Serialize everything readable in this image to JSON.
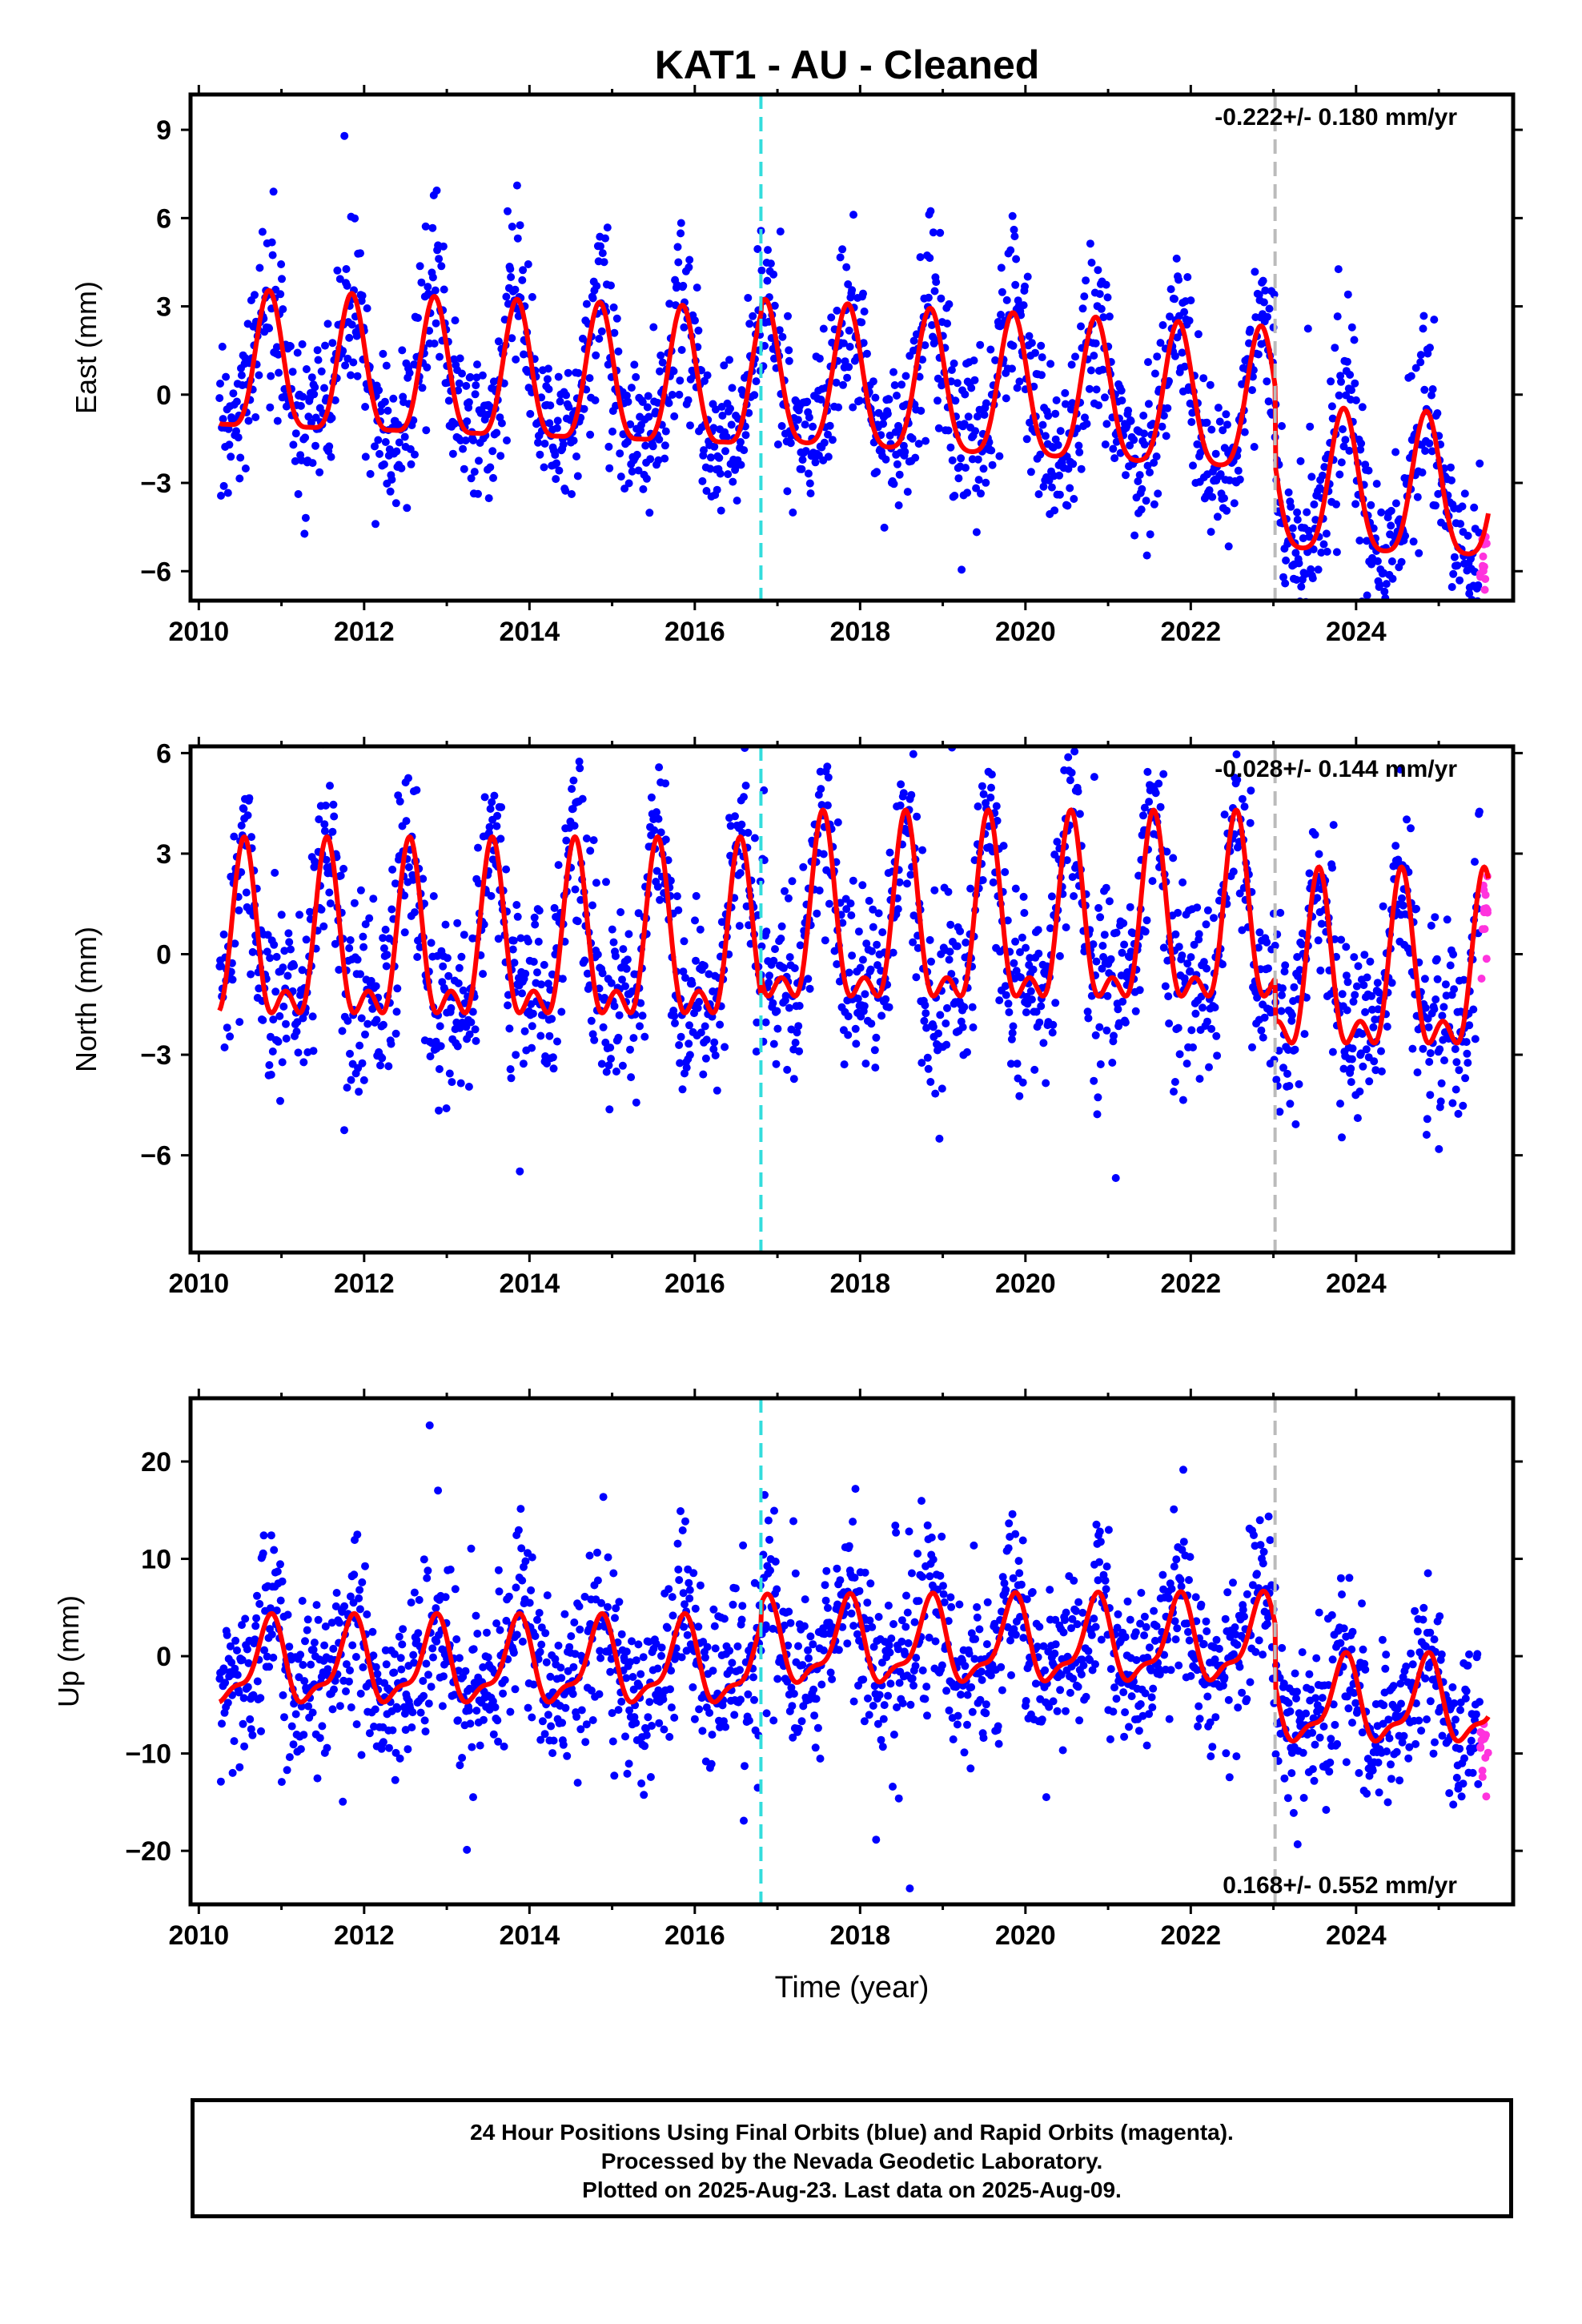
{
  "title": "KAT1  - AU - Cleaned",
  "colors": {
    "final_orbit": "#0000ff",
    "rapid_orbit": "#ff33dd",
    "model_fit": "#ff0000",
    "antenna_change_line": "#33dddd",
    "other_event_line": "#bbbbbb"
  },
  "footer": {
    "line1": "24 Hour Positions Using Final Orbits (blue) and Rapid Orbits (magenta).",
    "line2": "Processed by the Nevada Geodetic Laboratory.",
    "line3": "Plotted on 2025-Aug-23. Last data on 2025-Aug-09."
  },
  "chart_data": [
    {
      "type": "scatter",
      "name": "east",
      "ylabel": "East (mm)",
      "xlabel": "",
      "rate_text": "-0.222+/- 0.180 mm/yr",
      "rate_position": "top-right",
      "xlim": [
        2009.9,
        2025.9
      ],
      "ylim": [
        -7.0,
        10.2
      ],
      "xticks": [
        2010,
        2012,
        2014,
        2016,
        2018,
        2020,
        2022,
        2024
      ],
      "xtick_labels": [
        "2010",
        "2012",
        "2014",
        "2016",
        "2018",
        "2020",
        "2022",
        "2024"
      ],
      "yticks": [
        -6,
        -3,
        0,
        3,
        6,
        9
      ],
      "ytick_labels": [
        "−6",
        "−3",
        "0",
        "3",
        "6",
        "9"
      ],
      "events": [
        {
          "x": 2016.8,
          "kind": "antenna_change_line"
        },
        {
          "x": 2023.02,
          "kind": "other_event_line"
        }
      ],
      "data_start": 2010.25,
      "data_end": 2025.6,
      "rapid_start": 2025.5,
      "model": {
        "segments": [
          {
            "from": 2010.25,
            "to": 2016.8,
            "offset": 0.7,
            "trend": 0.0,
            "annual_amp": 2.3,
            "annual_phase": 0.85,
            "semi_amp": 0.6,
            "semi_phase": 0.35
          },
          {
            "from": 2016.8,
            "to": 2023.02,
            "offset": 1.0,
            "trend": -0.05,
            "annual_amp": 2.4,
            "annual_phase": 0.85,
            "semi_amp": 0.5,
            "semi_phase": 0.35
          },
          {
            "from": 2023.02,
            "to": 2025.6,
            "offset": -2.0,
            "trend": 0.0,
            "annual_amp": 2.4,
            "annual_phase": 0.85,
            "semi_amp": 0.5,
            "semi_phase": 0.35
          }
        ],
        "trend_change": {
          "from": 2010.25,
          "rate": -0.1
        }
      },
      "scatter_sigma": 1.25,
      "scatter_extra_annual": 1.3,
      "points_per_year": 120
    },
    {
      "type": "scatter",
      "name": "north",
      "ylabel": "North (mm)",
      "xlabel": "",
      "rate_text": "-0.028+/- 0.144 mm/yr",
      "rate_position": "top-right",
      "xlim": [
        2009.9,
        2025.9
      ],
      "ylim": [
        -8.9,
        6.2
      ],
      "xticks": [
        2010,
        2012,
        2014,
        2016,
        2018,
        2020,
        2022,
        2024
      ],
      "xtick_labels": [
        "2010",
        "2012",
        "2014",
        "2016",
        "2018",
        "2020",
        "2022",
        "2024"
      ],
      "yticks": [
        -6,
        -3,
        0,
        3,
        6
      ],
      "ytick_labels": [
        "−6",
        "−3",
        "0",
        "3",
        "6"
      ],
      "events": [
        {
          "x": 2016.8,
          "kind": "antenna_change_line"
        },
        {
          "x": 2023.02,
          "kind": "other_event_line"
        }
      ],
      "data_start": 2010.25,
      "data_end": 2025.6,
      "rapid_start": 2025.5,
      "model": {
        "segments": [
          {
            "from": 2010.25,
            "to": 2016.8,
            "offset": 0.0,
            "trend": 0.0,
            "annual_amp": 2.3,
            "annual_phase": 0.55,
            "semi_amp": 1.2,
            "semi_phase": 0.55
          },
          {
            "from": 2016.8,
            "to": 2023.02,
            "offset": 0.6,
            "trend": 0.0,
            "annual_amp": 2.5,
            "annual_phase": 0.55,
            "semi_amp": 1.2,
            "semi_phase": 0.55
          },
          {
            "from": 2023.02,
            "to": 2025.6,
            "offset": -0.9,
            "trend": 0.0,
            "annual_amp": 2.3,
            "annual_phase": 0.55,
            "semi_amp": 1.2,
            "semi_phase": 0.55
          }
        ],
        "trend_change": {
          "from": 2010.25,
          "rate": 0.0
        }
      },
      "scatter_sigma": 1.3,
      "scatter_extra_annual": 1.0,
      "points_per_year": 120
    },
    {
      "type": "scatter",
      "name": "up",
      "ylabel": "Up (mm)",
      "xlabel": "Time (year)",
      "rate_text": "0.168+/- 0.552 mm/yr",
      "rate_position": "bottom-right",
      "xlim": [
        2009.9,
        2025.9
      ],
      "ylim": [
        -25.5,
        26.5
      ],
      "xticks": [
        2010,
        2012,
        2014,
        2016,
        2018,
        2020,
        2022,
        2024
      ],
      "xtick_labels": [
        "2010",
        "2012",
        "2014",
        "2016",
        "2018",
        "2020",
        "2022",
        "2024"
      ],
      "yticks": [
        -20,
        -10,
        0,
        10,
        20
      ],
      "ytick_labels": [
        "−20",
        "−10",
        "0",
        "10",
        "20"
      ],
      "events": [
        {
          "x": 2016.8,
          "kind": "antenna_change_line"
        },
        {
          "x": 2023.02,
          "kind": "other_event_line"
        }
      ],
      "data_start": 2010.25,
      "data_end": 2025.6,
      "rapid_start": 2025.5,
      "model": {
        "segments": [
          {
            "from": 2010.25,
            "to": 2016.8,
            "offset": -1.0,
            "trend": 0.0,
            "annual_amp": 4.0,
            "annual_phase": 0.85,
            "semi_amp": 1.5,
            "semi_phase": 0.4
          },
          {
            "from": 2016.8,
            "to": 2023.02,
            "offset": 1.0,
            "trend": 0.05,
            "annual_amp": 4.0,
            "annual_phase": 0.85,
            "semi_amp": 1.5,
            "semi_phase": 0.4
          },
          {
            "from": 2023.02,
            "to": 2025.6,
            "offset": -5.0,
            "trend": 0.0,
            "annual_amp": 4.0,
            "annual_phase": 0.85,
            "semi_amp": 1.5,
            "semi_phase": 0.4
          }
        ],
        "trend_change": {
          "from": 2010.25,
          "rate": 0.0
        }
      },
      "scatter_sigma": 4.2,
      "scatter_extra_annual": 2.0,
      "points_per_year": 120
    }
  ]
}
